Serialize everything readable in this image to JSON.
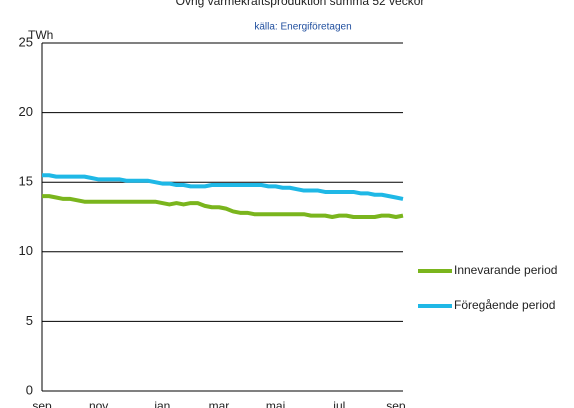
{
  "chart_data": {
    "type": "line",
    "title": "Övrig värmekraftsproduktion  summa 52 veckor",
    "subtitle": "källa: Energiföretagen",
    "y_label": "TWh",
    "categories": [
      "sep",
      null,
      null,
      null,
      null,
      null,
      null,
      null,
      "nov",
      null,
      null,
      null,
      null,
      null,
      null,
      null,
      null,
      "jan",
      null,
      null,
      null,
      null,
      null,
      null,
      null,
      "mar",
      null,
      null,
      null,
      null,
      null,
      null,
      null,
      "maj",
      null,
      null,
      null,
      null,
      null,
      null,
      null,
      null,
      "jul",
      null,
      null,
      null,
      null,
      null,
      null,
      null,
      "sep",
      null
    ],
    "series": [
      {
        "name": "Innevarande period",
        "color": "#7ab51d",
        "values": [
          14.0,
          14.0,
          13.9,
          13.8,
          13.8,
          13.7,
          13.6,
          13.6,
          13.6,
          13.6,
          13.6,
          13.6,
          13.6,
          13.6,
          13.6,
          13.6,
          13.6,
          13.5,
          13.4,
          13.5,
          13.4,
          13.5,
          13.5,
          13.3,
          13.2,
          13.2,
          13.1,
          12.9,
          12.8,
          12.8,
          12.7,
          12.7,
          12.7,
          12.7,
          12.7,
          12.7,
          12.7,
          12.7,
          12.6,
          12.6,
          12.6,
          12.5,
          12.6,
          12.6,
          12.5,
          12.5,
          12.5,
          12.5,
          12.6,
          12.6,
          12.5,
          12.6
        ]
      },
      {
        "name": "Föregående period",
        "color": "#1fb8e6",
        "values": [
          15.5,
          15.5,
          15.4,
          15.4,
          15.4,
          15.4,
          15.4,
          15.3,
          15.2,
          15.2,
          15.2,
          15.2,
          15.1,
          15.1,
          15.1,
          15.1,
          15.0,
          14.9,
          14.9,
          14.8,
          14.8,
          14.7,
          14.7,
          14.7,
          14.8,
          14.8,
          14.8,
          14.8,
          14.8,
          14.8,
          14.8,
          14.8,
          14.7,
          14.7,
          14.6,
          14.6,
          14.5,
          14.4,
          14.4,
          14.4,
          14.3,
          14.3,
          14.3,
          14.3,
          14.3,
          14.2,
          14.2,
          14.1,
          14.1,
          14.0,
          13.9,
          13.8
        ]
      }
    ],
    "ylim": [
      0,
      25
    ],
    "yticks": [
      0,
      5,
      10,
      15,
      20,
      25
    ],
    "grid": true,
    "legend": "right"
  }
}
